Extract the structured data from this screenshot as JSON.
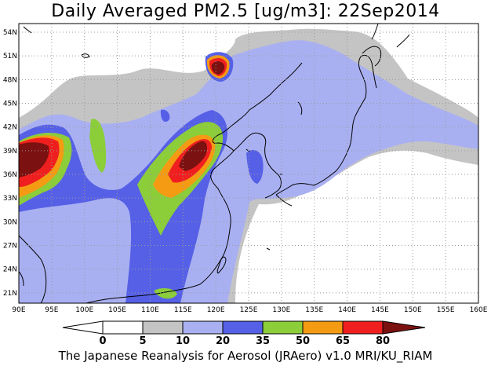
{
  "title": "Daily Averaged PM2.5 [ug/m3]: 22Sep2014",
  "credit": "The Japanese Reanalysis for Aerosol (JRAero) v1.0 MRI/KU_RIAM",
  "axes": {
    "lon_labels": [
      "90E",
      "95E",
      "100E",
      "105E",
      "110E",
      "115E",
      "120E",
      "125E",
      "130E",
      "135E",
      "140E",
      "145E",
      "150E",
      "155E",
      "160E"
    ],
    "lat_labels": [
      "54N",
      "51N",
      "48N",
      "45N",
      "42N",
      "39N",
      "36N",
      "33N",
      "30N",
      "27N",
      "24N",
      "21N"
    ]
  },
  "colorbar": {
    "levels": [
      "0",
      "5",
      "10",
      "20",
      "35",
      "50",
      "65",
      "80"
    ],
    "colors": [
      "#ffffff",
      "#ffffff",
      "#c4c4c4",
      "#a9b0f2",
      "#5660e6",
      "#8ccd3a",
      "#f49b13",
      "#f01f1f",
      "#7c1111"
    ]
  },
  "palette": {
    "c10": "#c4c4c4",
    "c20": "#a9b0f2",
    "c35": "#5660e6",
    "c50": "#8ccd3a",
    "c65": "#f49b13",
    "c80": "#f01f1f",
    "c80plus": "#7c1111",
    "coast": "#000000"
  }
}
